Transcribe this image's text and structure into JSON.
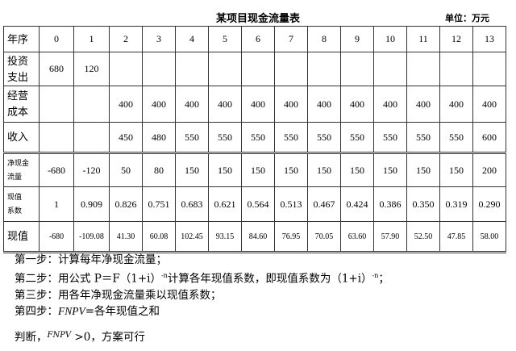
{
  "title": "某项目现金流量表",
  "unit": "单位：万元",
  "table": {
    "header": {
      "label": "年序",
      "cells": [
        "0",
        "1",
        "2",
        "3",
        "4",
        "5",
        "6",
        "7",
        "8",
        "9",
        "10",
        "11",
        "12",
        "13"
      ]
    },
    "rows": [
      {
        "label": "投资支出",
        "cells": [
          "680",
          "120",
          "",
          "",
          "",
          "",
          "",
          "",
          "",
          "",
          "",
          "",
          "",
          ""
        ]
      },
      {
        "label": "经营成本",
        "cells": [
          "",
          "",
          "400",
          "400",
          "400",
          "400",
          "400",
          "400",
          "400",
          "400",
          "400",
          "400",
          "400",
          "400"
        ]
      },
      {
        "label": "收入",
        "cells": [
          "",
          "",
          "450",
          "480",
          "550",
          "550",
          "550",
          "550",
          "550",
          "550",
          "550",
          "550",
          "550",
          "600"
        ]
      },
      {
        "label": "净现金流量",
        "cells": [
          "-680",
          "-120",
          "50",
          "80",
          "150",
          "150",
          "150",
          "150",
          "150",
          "150",
          "150",
          "150",
          "150",
          "200"
        ]
      },
      {
        "label": "现值系数",
        "cells": [
          "1",
          "0.909",
          "0.826",
          "0.751",
          "0.683",
          "0.621",
          "0.564",
          "0.513",
          "0.467",
          "0.424",
          "0.386",
          "0.350",
          "0.319",
          "0.290"
        ]
      },
      {
        "label": "现值",
        "cells": [
          "-680",
          "-109.08",
          "41.30",
          "60.08",
          "102.45",
          "93.15",
          "84.60",
          "76.95",
          "70.05",
          "63.60",
          "57.90",
          "52.50",
          "47.85",
          "58.00"
        ]
      }
    ]
  },
  "steps": {
    "s1": "第一步：计算每年净现金流量；",
    "s2a": "第二步：用公式 P＝F（1+i）",
    "s2exp": "-n",
    "s2b": "计算各年现值系数，即现值系数为（1+i）",
    "s2exp2": "-n",
    "s2c": "；",
    "s3": "第三步：用各年净现金流量乘以现值系数；",
    "s4a": "第四步：",
    "s4var": "FNPV",
    "s4b": "=各年现值之和"
  },
  "judgement": {
    "a": "判断，",
    "var": "FNPV",
    "b": " >0，方案可行"
  }
}
